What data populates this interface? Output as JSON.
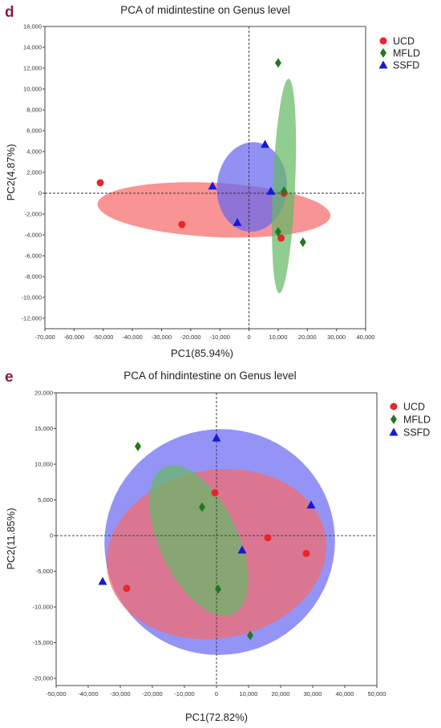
{
  "chart_data": [
    {
      "panel_letter": "d",
      "type": "scatter",
      "title": "PCA of midintestine on Genus level",
      "xlabel": "PC1(85.94%)",
      "ylabel": "PC2(4.87%)",
      "xlim": [
        -70000,
        40000
      ],
      "ylim": [
        -13000,
        16000
      ],
      "xticks": [
        -70000,
        -60000,
        -50000,
        -40000,
        -30000,
        -20000,
        -10000,
        0,
        10000,
        20000,
        30000,
        40000
      ],
      "xtick_labels": [
        "-70,000",
        "-60,000",
        "-50,000",
        "-40,000",
        "-30,000",
        "-20,000",
        "-10,000",
        "0",
        "10,000",
        "20,000",
        "30,000",
        "40,000"
      ],
      "yticks": [
        -12000,
        -10000,
        -8000,
        -6000,
        -4000,
        -2000,
        0,
        2000,
        4000,
        6000,
        8000,
        10000,
        12000,
        14000,
        16000
      ],
      "ytick_labels": [
        "-12,000",
        "-10,000",
        "-8,000",
        "-6,000",
        "-4,000",
        "-2,000",
        "0",
        "2,000",
        "4,000",
        "6,000",
        "8,000",
        "10,000",
        "12,000",
        "14,000",
        "16,000"
      ],
      "legend_position": "top-right",
      "grid": false,
      "series": [
        {
          "name": "UCD",
          "marker": "circle",
          "color": "#e8262b",
          "x": [
            -51000,
            -23000,
            11000,
            12000
          ],
          "y": [
            1000,
            -3000,
            -4300,
            0
          ]
        },
        {
          "name": "MFLD",
          "marker": "diamond",
          "color": "#1f7a1f",
          "x": [
            10000,
            12000,
            10000,
            18500
          ],
          "y": [
            12500,
            200,
            -3700,
            -4700
          ]
        },
        {
          "name": "SSFD",
          "marker": "triangle",
          "color": "#1818d6",
          "x": [
            -12500,
            5500,
            -4000,
            7500
          ],
          "y": [
            700,
            4700,
            -2800,
            200
          ]
        }
      ],
      "ellipses": [
        {
          "series": "UCD",
          "color": "#f56b6b",
          "cx": -12000,
          "cy": -1600,
          "rx": 40000,
          "ry": 2600,
          "angle": -2.9
        },
        {
          "series": "SSFD",
          "color": "#6666ee",
          "cx": 1000,
          "cy": 600,
          "rx": 12000,
          "ry": 4300,
          "angle": -4
        },
        {
          "series": "MFLD",
          "color": "#66b866",
          "cx": 12000,
          "cy": 700,
          "rx": 3800,
          "ry": 10300,
          "angle": -2.5
        }
      ]
    },
    {
      "panel_letter": "e",
      "type": "scatter",
      "title": "PCA of hindintestine on Genus level",
      "xlabel": "PC1(72.82%)",
      "ylabel": "PC2(11.85%)",
      "xlim": [
        -50000,
        50000
      ],
      "ylim": [
        -21000,
        20000
      ],
      "xticks": [
        -50000,
        -40000,
        -30000,
        -20000,
        -10000,
        0,
        10000,
        20000,
        30000,
        40000,
        50000
      ],
      "xtick_labels": [
        "-50,000",
        "-40,000",
        "-30,000",
        "-20,000",
        "-10,000",
        "0",
        "10,000",
        "20,000",
        "30,000",
        "40,000",
        "50,000"
      ],
      "yticks": [
        -20000,
        -15000,
        -10000,
        -5000,
        0,
        5000,
        10000,
        15000,
        20000
      ],
      "ytick_labels": [
        "-20,000",
        "-15,000",
        "-10,000",
        "-5,000",
        "0",
        "5,000",
        "10,000",
        "15,000",
        "20,000"
      ],
      "legend_position": "top-right",
      "grid": false,
      "series": [
        {
          "name": "UCD",
          "marker": "circle",
          "color": "#e8262b",
          "x": [
            -28000,
            -500,
            16000,
            28000
          ],
          "y": [
            -7400,
            6000,
            -300,
            -2500
          ]
        },
        {
          "name": "MFLD",
          "marker": "diamond",
          "color": "#1f7a1f",
          "x": [
            -24500,
            -4500,
            500,
            10500
          ],
          "y": [
            12500,
            4000,
            -7500,
            -14000
          ]
        },
        {
          "name": "SSFD",
          "marker": "triangle",
          "color": "#1818d6",
          "x": [
            -35500,
            0,
            29500,
            8000
          ],
          "y": [
            -6400,
            13700,
            4300,
            -2000
          ]
        }
      ],
      "ellipses": [
        {
          "series": "SSFD",
          "color": "#6b6bf2",
          "cx": 1000,
          "cy": -900,
          "rx": 36000,
          "ry": 15800,
          "angle": 15
        },
        {
          "series": "UCD",
          "color": "#f56b6b",
          "cx": 0,
          "cy": -2600,
          "rx": 34500,
          "ry": 11800,
          "angle": 10
        },
        {
          "series": "MFLD",
          "color": "#66b866",
          "cx": -5500,
          "cy": -700,
          "rx": 25300,
          "ry": 5500,
          "angle": -65
        }
      ]
    }
  ]
}
